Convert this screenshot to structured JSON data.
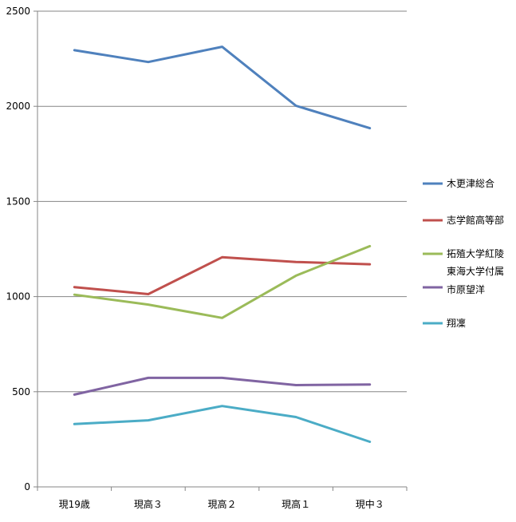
{
  "chart_data": {
    "type": "line",
    "title": "",
    "xlabel": "",
    "ylabel": "",
    "categories": [
      "現19歳",
      "現高３",
      "現高２",
      "現高１",
      "現中３"
    ],
    "ylim": [
      0,
      2500
    ],
    "yticks": [
      0,
      500,
      1000,
      1500,
      2000,
      2500
    ],
    "grid": true,
    "legend_position": "right",
    "series": [
      {
        "name": "木更津総合",
        "color": "#4F81BD",
        "values": [
          2295,
          2233,
          2313,
          2003,
          1885
        ]
      },
      {
        "name": "志学館高等部",
        "color": "#C0504D",
        "values": [
          1050,
          1013,
          1207,
          1182,
          1170
        ]
      },
      {
        "name": "拓殖大学紅陵",
        "color": "#9BBB59",
        "values": [
          1010,
          958,
          888,
          1110,
          1265
        ]
      },
      {
        "name": "東海大学付属\n市原望洋",
        "color": "#8064A2",
        "values": [
          485,
          573,
          573,
          535,
          538
        ]
      },
      {
        "name": "翔凜",
        "color": "#4BACC6",
        "values": [
          330,
          350,
          425,
          367,
          237
        ]
      }
    ]
  }
}
